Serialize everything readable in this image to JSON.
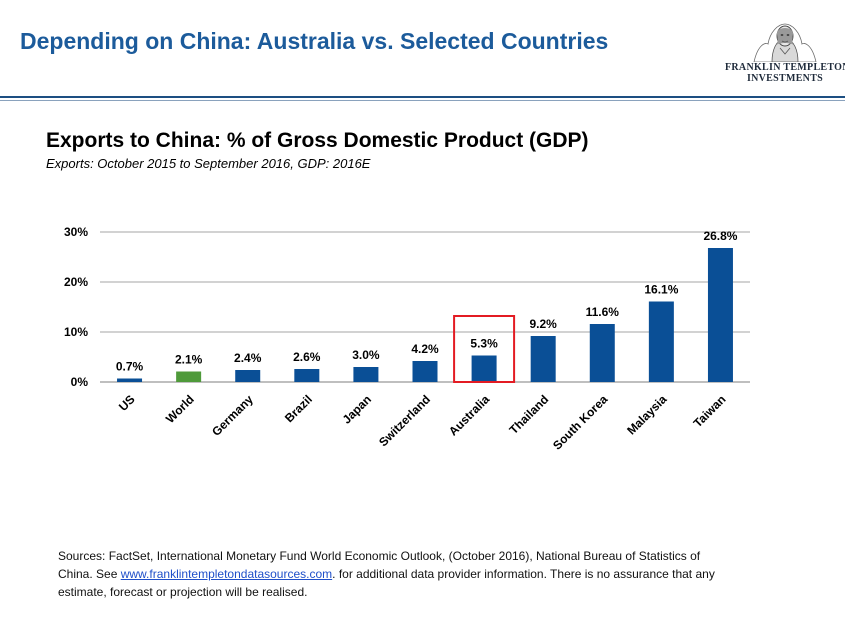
{
  "slide": {
    "title": "Depending on China: Australia vs. Selected Countries"
  },
  "brand": {
    "line1": "FRANKLIN TEMPLETON",
    "line2": "INVESTMENTS"
  },
  "colors": {
    "title_blue": "#1c5b9b",
    "bar_blue": "#0a4f96",
    "bar_green": "#4f9a3a",
    "highlight_red": "#e31b23"
  },
  "chart_data": {
    "type": "bar",
    "title": "Exports to China: % of Gross Domestic Product (GDP)",
    "subtitle": "Exports: October 2015 to September 2016, GDP: 2016E",
    "categories": [
      "US",
      "World",
      "Germany",
      "Brazil",
      "Japan",
      "Switzerland",
      "Australia",
      "Thailand",
      "South Korea",
      "Malaysia",
      "Taiwan"
    ],
    "values": [
      0.7,
      2.1,
      2.4,
      2.6,
      3.0,
      4.2,
      5.3,
      9.2,
      11.6,
      16.1,
      26.8
    ],
    "value_labels": [
      "0.7%",
      "2.1%",
      "2.4%",
      "2.6%",
      "3.0%",
      "4.2%",
      "5.3%",
      "9.2%",
      "11.6%",
      "16.1%",
      "26.8%"
    ],
    "ylim": [
      0,
      30
    ],
    "yticks": [
      0,
      10,
      20,
      30
    ],
    "ytick_labels": [
      "0%",
      "10%",
      "20%",
      "30%"
    ],
    "grid": true,
    "highlight_bar": "World",
    "boxed_bar": "Australia"
  },
  "footnote": {
    "text_before": "Sources: FactSet, International Monetary Fund World Economic Outlook, (October 2016), National Bureau of Statistics of China. See ",
    "link": "www.franklintempletondatasources.com",
    "text_after": ". for additional data provider information. There is no assurance that any estimate, forecast or projection will be realised."
  }
}
